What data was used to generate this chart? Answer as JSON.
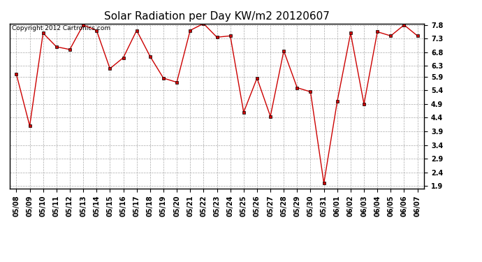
{
  "title": "Solar Radiation per Day KW/m2 20120607",
  "copyright": "Copyright 2012 Cartronics.com",
  "x_labels": [
    "05/08",
    "05/09",
    "05/10",
    "05/11",
    "05/12",
    "05/13",
    "05/14",
    "05/15",
    "05/16",
    "05/17",
    "05/18",
    "05/19",
    "05/20",
    "05/21",
    "05/22",
    "05/23",
    "05/24",
    "05/25",
    "05/26",
    "05/27",
    "05/28",
    "05/29",
    "05/30",
    "05/31",
    "06/01",
    "06/02",
    "06/03",
    "06/04",
    "06/05",
    "06/06",
    "06/07"
  ],
  "y_values": [
    6.0,
    4.1,
    7.5,
    7.0,
    6.9,
    7.8,
    7.6,
    6.2,
    6.6,
    7.6,
    6.65,
    5.85,
    5.7,
    7.6,
    7.85,
    7.35,
    7.4,
    4.6,
    5.85,
    4.45,
    6.85,
    5.5,
    5.35,
    2.0,
    5.0,
    7.5,
    4.9,
    7.55,
    7.4,
    7.8,
    7.4
  ],
  "ylim_min": 1.9,
  "ylim_max": 7.8,
  "yticks": [
    1.9,
    2.4,
    2.9,
    3.4,
    3.9,
    4.4,
    4.9,
    5.4,
    5.9,
    6.3,
    6.8,
    7.3,
    7.8
  ],
  "line_color": "#cc0000",
  "marker": "s",
  "marker_size": 2.5,
  "bg_color": "#ffffff",
  "grid_color": "#aaaaaa",
  "title_fontsize": 11,
  "tick_fontsize": 7,
  "copyright_fontsize": 6.5
}
